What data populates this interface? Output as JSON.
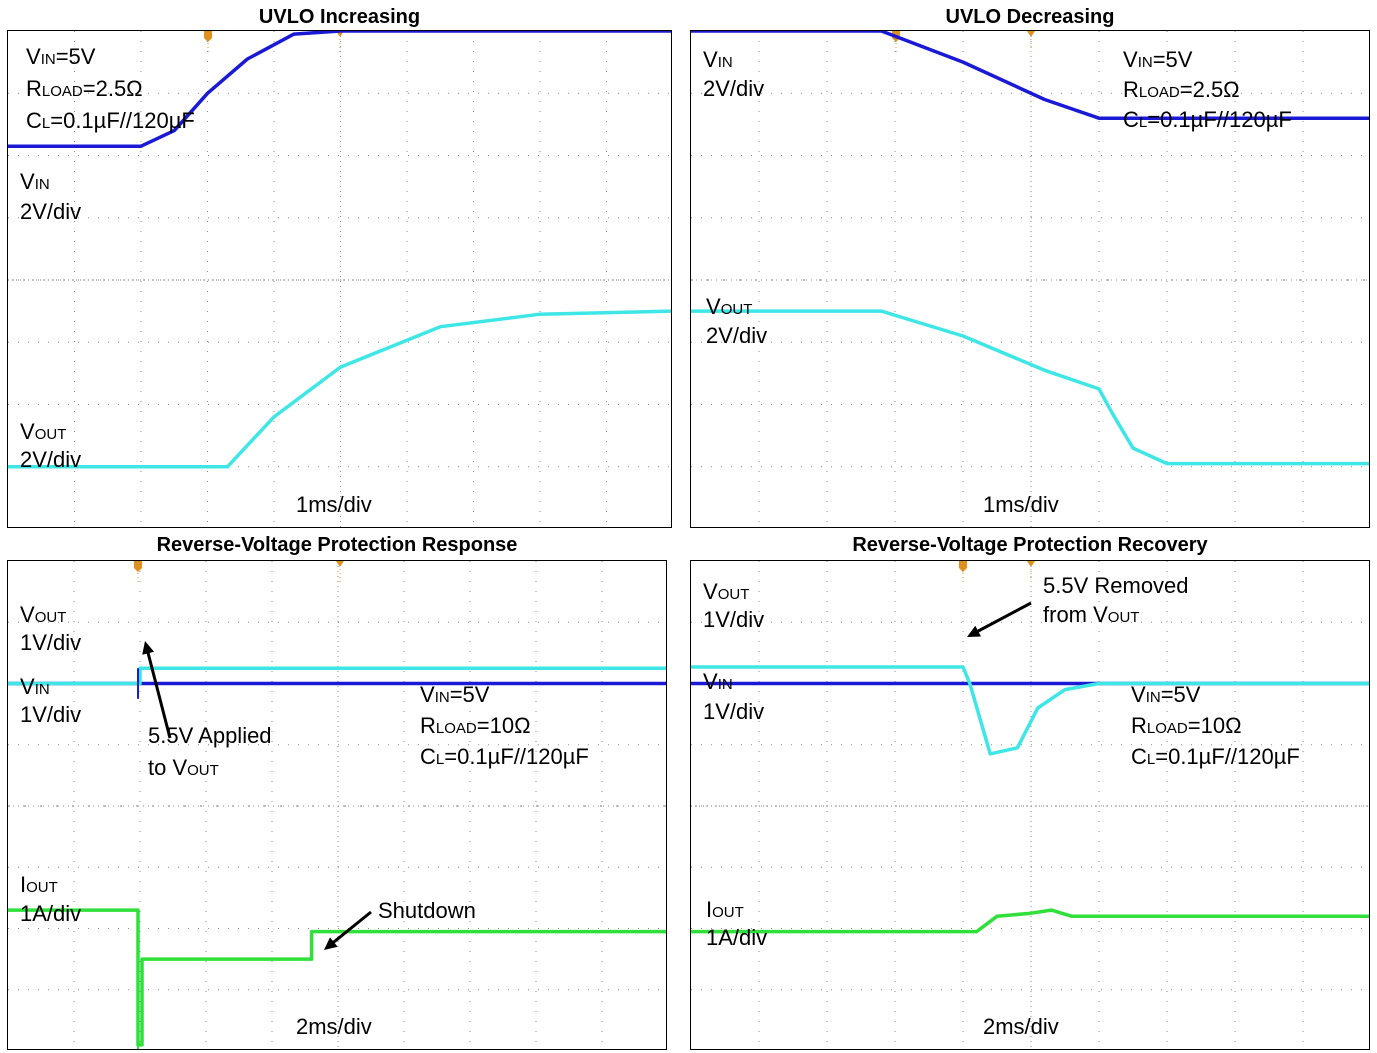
{
  "colors": {
    "vin": "#1a1ad6",
    "vout": "#3ee6e6",
    "iout": "#2fe03a",
    "grid": "#8a8a8a",
    "marker": "#e09020",
    "arrow": "#000000"
  },
  "panels": [
    {
      "title": "UVLO Increasing",
      "labels": {
        "vin_main": "V",
        "vin_sub": "IN",
        "vin_val": "=5V",
        "rload_main": "R",
        "rload_sub": "LOAD",
        "rload_val": "=2.5Ω",
        "cl_main": "C",
        "cl_sub": "L",
        "cl_val": "=0.1µF//120µF",
        "ch1_main": "V",
        "ch1_sub": "IN",
        "ch1_scale": "2V/div",
        "ch2_main": "V",
        "ch2_sub": "OUT",
        "ch2_scale": "2V/div",
        "time": "1ms/div"
      }
    },
    {
      "title": "UVLO Decreasing",
      "labels": {
        "ch1_main": "V",
        "ch1_sub": "IN",
        "ch1_scale": "2V/div",
        "vin_main": "V",
        "vin_sub": "IN",
        "vin_val": "=5V",
        "rload_main": "R",
        "rload_sub": "LOAD",
        "rload_val": "=2.5Ω",
        "cl_main": "C",
        "cl_sub": "L",
        "cl_val": "=0.1µF//120µF",
        "ch2_main": "V",
        "ch2_sub": "OUT",
        "ch2_scale": "2V/div",
        "time": "1ms/div"
      }
    },
    {
      "title": "Reverse-Voltage Protection Response",
      "labels": {
        "ch1_main": "V",
        "ch1_sub": "OUT",
        "ch1_scale": "1V/div",
        "ch2_main": "V",
        "ch2_sub": "IN",
        "ch2_scale": "1V/div",
        "vin_main": "V",
        "vin_sub": "IN",
        "vin_val": "=5V",
        "rload_main": "R",
        "rload_sub": "LOAD",
        "rload_val": "=10Ω",
        "cl_main": "C",
        "cl_sub": "L",
        "cl_val": "=0.1µF//120µF",
        "annot1_line1": "5.5V Applied",
        "annot1_line2_main": "to V",
        "annot1_line2_sub": "OUT",
        "annot2": "Shutdown",
        "ch3_main": "I",
        "ch3_sub": "OUT",
        "ch3_scale": "1A/div",
        "time": "2ms/div"
      }
    },
    {
      "title": "Reverse-Voltage Protection Recovery",
      "labels": {
        "ch1_main": "V",
        "ch1_sub": "OUT",
        "ch1_scale": "1V/div",
        "annot1_line1": "5.5V Removed",
        "annot1_line2_main": "from V",
        "annot1_line2_sub": "OUT",
        "ch2_main": "V",
        "ch2_sub": "IN",
        "ch2_scale": "1V/div",
        "vin_main": "V",
        "vin_sub": "IN",
        "vin_val": "=5V",
        "rload_main": "R",
        "rload_sub": "LOAD",
        "rload_val": "=10Ω",
        "cl_main": "C",
        "cl_sub": "L",
        "cl_val": "=0.1µF//120µF",
        "ch3_main": "I",
        "ch3_sub": "OUT",
        "ch3_scale": "1A/div",
        "time": "2ms/div"
      }
    }
  ],
  "chart_data": [
    {
      "type": "line",
      "title": "UVLO Increasing",
      "x_unit": "div",
      "y_unit": "div",
      "xlim": [
        0,
        10
      ],
      "ylim": [
        0,
        8
      ],
      "series": [
        {
          "name": "VIN",
          "x": [
            0,
            2.0,
            2.5,
            3.0,
            3.6,
            4.3,
            5.0,
            10
          ],
          "y": [
            6.15,
            6.15,
            6.4,
            7.0,
            7.55,
            7.95,
            8.0,
            8.0
          ]
        },
        {
          "name": "VOUT",
          "x": [
            0,
            3.3,
            4.0,
            5.0,
            6.5,
            8.0,
            10
          ],
          "y": [
            1.0,
            1.0,
            1.8,
            2.6,
            3.25,
            3.45,
            3.5
          ]
        }
      ]
    },
    {
      "type": "line",
      "title": "UVLO Decreasing",
      "x_unit": "div",
      "y_unit": "div",
      "xlim": [
        0,
        10
      ],
      "ylim": [
        0,
        8
      ],
      "series": [
        {
          "name": "VIN",
          "x": [
            0,
            2.8,
            4.0,
            5.2,
            6.0,
            10
          ],
          "y": [
            8.0,
            8.0,
            7.5,
            6.9,
            6.6,
            6.6
          ]
        },
        {
          "name": "VOUT",
          "x": [
            0,
            2.8,
            4.0,
            5.2,
            6.0,
            6.2,
            6.5,
            7.0,
            10
          ],
          "y": [
            3.5,
            3.5,
            3.1,
            2.55,
            2.25,
            1.85,
            1.3,
            1.05,
            1.05
          ]
        }
      ]
    },
    {
      "type": "line",
      "title": "Reverse-Voltage Protection Response",
      "x_unit": "div",
      "y_unit": "div",
      "xlim": [
        0,
        10
      ],
      "ylim": [
        0,
        8
      ],
      "series": [
        {
          "name": "VOUT",
          "x": [
            0,
            2.0,
            2.0,
            10
          ],
          "y": [
            6.0,
            6.0,
            6.25,
            6.25
          ]
        },
        {
          "name": "VIN",
          "x": [
            0,
            10
          ],
          "y": [
            6.0,
            6.0
          ]
        },
        {
          "name": "IOUT",
          "x": [
            0,
            1.97,
            1.97,
            2.03,
            2.03,
            4.6,
            4.6,
            10
          ],
          "y": [
            2.3,
            2.3,
            0.1,
            0.1,
            1.5,
            1.5,
            1.95,
            1.95
          ]
        }
      ]
    },
    {
      "type": "line",
      "title": "Reverse-Voltage Protection Recovery",
      "x_unit": "div",
      "y_unit": "div",
      "xlim": [
        0,
        10
      ],
      "ylim": [
        0,
        8
      ],
      "series": [
        {
          "name": "VOUT",
          "x": [
            0,
            4.0,
            4.1,
            4.4,
            4.8,
            5.1,
            5.5,
            6.0,
            10
          ],
          "y": [
            6.27,
            6.27,
            6.0,
            4.85,
            4.95,
            5.6,
            5.9,
            6.0,
            6.0
          ]
        },
        {
          "name": "VIN",
          "x": [
            0,
            10
          ],
          "y": [
            6.0,
            6.0
          ]
        },
        {
          "name": "IOUT",
          "x": [
            0,
            4.2,
            4.5,
            5.0,
            5.3,
            5.6,
            10
          ],
          "y": [
            1.95,
            1.95,
            2.2,
            2.25,
            2.3,
            2.2,
            2.2
          ]
        }
      ]
    }
  ]
}
